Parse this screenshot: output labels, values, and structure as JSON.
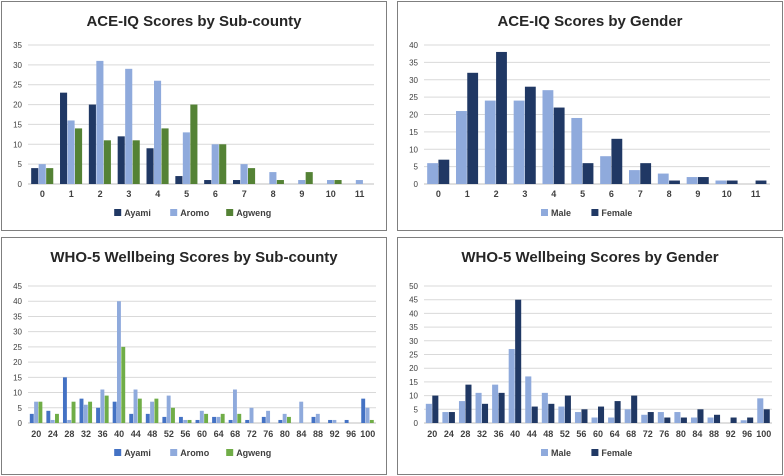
{
  "chart_data": [
    {
      "type": "bar",
      "title": "ACE-IQ Scores by Sub-county",
      "categories": [
        "0",
        "1",
        "2",
        "3",
        "4",
        "5",
        "6",
        "7",
        "8",
        "9",
        "10",
        "11"
      ],
      "series": [
        {
          "name": "Ayami",
          "color": "#203864",
          "values": [
            4,
            23,
            20,
            12,
            9,
            2,
            1,
            1,
            0,
            0,
            0,
            0
          ]
        },
        {
          "name": "Aromo",
          "color": "#8faadc",
          "values": [
            5,
            16,
            31,
            29,
            26,
            13,
            10,
            5,
            3,
            1,
            1,
            1
          ]
        },
        {
          "name": "Agweng",
          "color": "#548235",
          "values": [
            4,
            14,
            11,
            11,
            14,
            20,
            10,
            4,
            1,
            3,
            1,
            0
          ]
        }
      ],
      "ylim": [
        0,
        35
      ],
      "yticks": [
        0,
        5,
        10,
        15,
        20,
        25,
        30,
        35
      ],
      "grid": true,
      "legend": "bottom"
    },
    {
      "type": "bar",
      "title": "ACE-IQ Scores by Gender",
      "categories": [
        "0",
        "1",
        "2",
        "3",
        "4",
        "5",
        "6",
        "7",
        "8",
        "9",
        "10",
        "11"
      ],
      "series": [
        {
          "name": "Male",
          "color": "#8faadc",
          "values": [
            6,
            21,
            24,
            24,
            27,
            19,
            8,
            4,
            3,
            2,
            1,
            0
          ]
        },
        {
          "name": "Female",
          "color": "#203864",
          "values": [
            7,
            32,
            38,
            28,
            22,
            6,
            13,
            6,
            1,
            2,
            1,
            1
          ]
        }
      ],
      "ylim": [
        0,
        40
      ],
      "yticks": [
        0,
        5,
        10,
        15,
        20,
        25,
        30,
        35,
        40
      ],
      "grid": true,
      "legend": "bottom"
    },
    {
      "type": "bar",
      "title": "WHO-5 Wellbeing Scores by Sub-county",
      "categories": [
        "20",
        "24",
        "28",
        "32",
        "36",
        "40",
        "44",
        "48",
        "52",
        "56",
        "60",
        "64",
        "68",
        "72",
        "76",
        "80",
        "84",
        "88",
        "92",
        "96",
        "100"
      ],
      "series": [
        {
          "name": "Ayami",
          "color": "#4472c4",
          "values": [
            3,
            4,
            15,
            8,
            5,
            7,
            3,
            3,
            2,
            2,
            1,
            2,
            1,
            1,
            2,
            1,
            0,
            2,
            1,
            1,
            8
          ]
        },
        {
          "name": "Aromo",
          "color": "#8faadc",
          "values": [
            7,
            1,
            1,
            6,
            11,
            40,
            11,
            7,
            9,
            1,
            4,
            2,
            11,
            5,
            4,
            3,
            7,
            3,
            1,
            0,
            5
          ]
        },
        {
          "name": "Agweng",
          "color": "#70ad47",
          "values": [
            7,
            3,
            7,
            7,
            9,
            25,
            8,
            8,
            5,
            1,
            3,
            3,
            3,
            0,
            0,
            2,
            0,
            0,
            0,
            0,
            1
          ]
        }
      ],
      "ylim": [
        0,
        45
      ],
      "yticks": [
        0,
        5,
        10,
        15,
        20,
        25,
        30,
        35,
        40,
        45
      ],
      "grid": true,
      "legend": "bottom"
    },
    {
      "type": "bar",
      "title": "WHO-5 Wellbeing Scores by Gender",
      "categories": [
        "20",
        "24",
        "28",
        "32",
        "36",
        "40",
        "44",
        "48",
        "52",
        "56",
        "60",
        "64",
        "68",
        "72",
        "76",
        "80",
        "84",
        "88",
        "92",
        "96",
        "100"
      ],
      "series": [
        {
          "name": "Male",
          "color": "#8faadc",
          "values": [
            7,
            4,
            8,
            11,
            14,
            27,
            17,
            11,
            6,
            4,
            2,
            2,
            5,
            3,
            4,
            4,
            2,
            2,
            0,
            1,
            9
          ]
        },
        {
          "name": "Female",
          "color": "#203864",
          "values": [
            10,
            4,
            14,
            7,
            11,
            45,
            6,
            7,
            10,
            5,
            6,
            8,
            10,
            4,
            2,
            2,
            5,
            3,
            2,
            2,
            5
          ]
        }
      ],
      "ylim": [
        0,
        50
      ],
      "yticks": [
        0,
        5,
        10,
        15,
        20,
        25,
        30,
        35,
        40,
        45,
        50
      ],
      "grid": true,
      "legend": "bottom"
    }
  ]
}
